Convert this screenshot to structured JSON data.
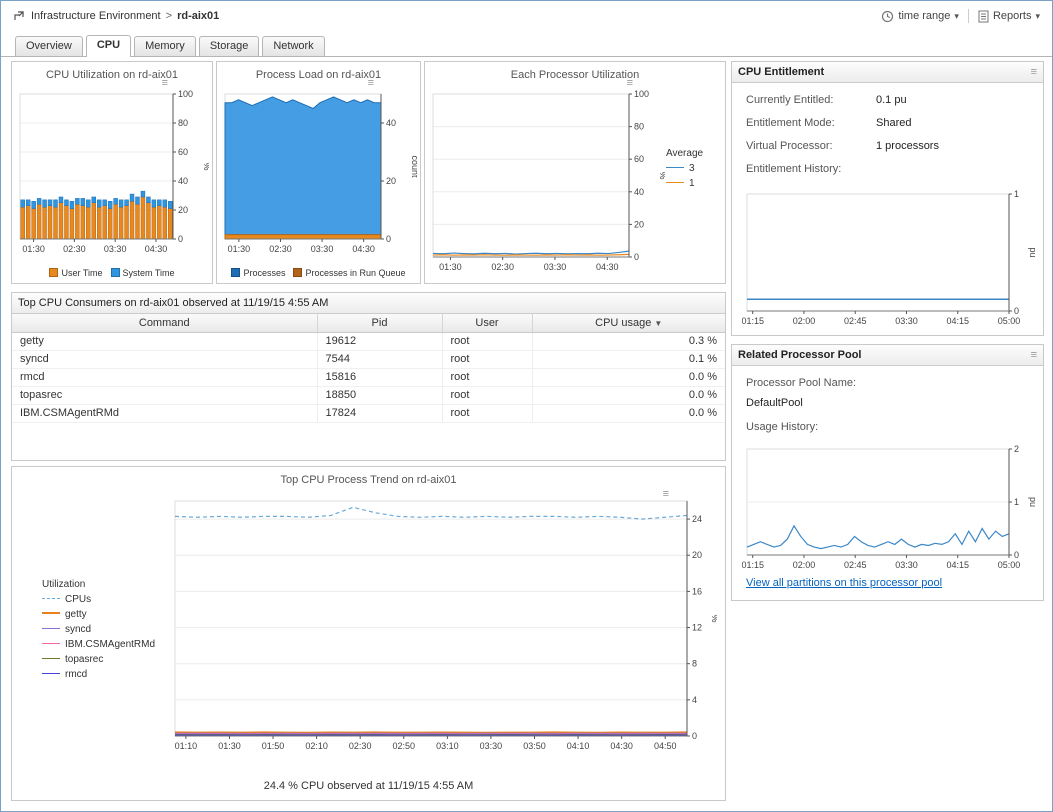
{
  "icons": {
    "menu": "≡",
    "caret": "▾",
    "sort_desc": "▼"
  },
  "breadcrumb": {
    "root": "Infrastructure Environment",
    "separator": ">",
    "current": "rd-aix01"
  },
  "topbar": {
    "time_range_label": "time range",
    "reports_label": "Reports"
  },
  "tabs": {
    "items": [
      {
        "label": "Overview",
        "active": false
      },
      {
        "label": "CPU",
        "active": true
      },
      {
        "label": "Memory",
        "active": false
      },
      {
        "label": "Storage",
        "active": false
      },
      {
        "label": "Network",
        "active": false
      }
    ]
  },
  "consumers": {
    "title": "Top CPU Consumers on rd-aix01 observed at 11/19/15 4:55 AM",
    "columns": [
      "Command",
      "Pid",
      "User",
      "CPU usage"
    ],
    "sort_column": "CPU usage",
    "rows": [
      {
        "command": "getty",
        "pid": "19612",
        "user": "root",
        "cpu": "0.3 %"
      },
      {
        "command": "syncd",
        "pid": "7544",
        "user": "root",
        "cpu": "0.1 %"
      },
      {
        "command": "rmcd",
        "pid": "15816",
        "user": "root",
        "cpu": "0.0 %"
      },
      {
        "command": "topasrec",
        "pid": "18850",
        "user": "root",
        "cpu": "0.0 %"
      },
      {
        "command": "IBM.CSMAgentRMd",
        "pid": "17824",
        "user": "root",
        "cpu": "0.0 %"
      }
    ]
  },
  "entitlement": {
    "title": "CPU Entitlement",
    "fields": [
      {
        "label": "Currently Entitled:",
        "value": "0.1 pu"
      },
      {
        "label": "Entitlement Mode:",
        "value": "Shared"
      },
      {
        "label": "Virtual Processor:",
        "value": "1 processors"
      }
    ],
    "history_label": "Entitlement History:"
  },
  "pool": {
    "title": "Related Processor Pool",
    "name_label": "Processor Pool Name:",
    "name_value": "DefaultPool",
    "usage_label": "Usage History:",
    "link": "View all partitions on this processor pool"
  },
  "trend": {
    "caption": "24.4 % CPU observed at 11/19/15 4:55 AM"
  },
  "chart_data": [
    {
      "type": "bar",
      "title": "CPU Utilization on rd-aix01",
      "ylabel": "%",
      "ylim": [
        0,
        100
      ],
      "yticks": [
        0,
        20,
        40,
        60,
        80,
        100
      ],
      "xrange": [
        "01:10",
        "04:55"
      ],
      "xticks": [
        "01:30",
        "02:30",
        "03:30",
        "04:30"
      ],
      "series": [
        {
          "name": "User Time",
          "color": "#e8891e",
          "stroke": "#b3641a",
          "values": [
            22,
            23,
            21,
            24,
            22,
            23,
            22,
            25,
            23,
            21,
            24,
            23,
            22,
            25,
            22,
            23,
            21,
            24,
            22,
            23,
            26,
            24,
            29,
            25,
            22,
            23,
            22,
            21
          ]
        },
        {
          "name": "System Time",
          "color": "#2e96e0",
          "stroke": "#1d6db3",
          "values": [
            5,
            4,
            5,
            4,
            5,
            4,
            5,
            4,
            4,
            5,
            4,
            5,
            5,
            4,
            5,
            4,
            5,
            4,
            5,
            4,
            5,
            5,
            4,
            4,
            5,
            4,
            5,
            5
          ]
        }
      ]
    },
    {
      "type": "area",
      "title": "Process Load on rd-aix01",
      "ylabel": "count",
      "ylim": [
        0,
        50
      ],
      "yticks": [
        0,
        20,
        40
      ],
      "xrange": [
        "01:10",
        "04:55"
      ],
      "xticks": [
        "01:30",
        "02:30",
        "03:30",
        "04:30"
      ],
      "series": [
        {
          "name": "Processes",
          "color": "#1d6db3",
          "fill": "#459ee4",
          "values": [
            47,
            47,
            48,
            47,
            46,
            47,
            48,
            49,
            48,
            47,
            48,
            47,
            46,
            45,
            47,
            48,
            49,
            48,
            47,
            48,
            47,
            48,
            47,
            47
          ]
        },
        {
          "name": "Processes in Run Queue",
          "color": "#b3641a",
          "fill": "#e8891e",
          "values": [
            1.5,
            1.5,
            1.5,
            1.5,
            1.5,
            1.5,
            1.5,
            1.5,
            1.5,
            1.5,
            1.5,
            1.5,
            1.5,
            1.5,
            1.5,
            1.5,
            1.5,
            1.5,
            1.5,
            1.5,
            1.5,
            1.5,
            1.5,
            1.5
          ]
        }
      ]
    },
    {
      "type": "line",
      "title": "Each Processor Utilization",
      "ylabel": "%",
      "ylim": [
        0,
        100
      ],
      "yticks": [
        0,
        20,
        40,
        60,
        80,
        100
      ],
      "xrange": [
        "01:10",
        "04:55"
      ],
      "xticks": [
        "01:30",
        "02:30",
        "03:30",
        "04:30"
      ],
      "legend_title": "Average",
      "swatch": "line",
      "series": [
        {
          "name": "3",
          "color": "#3b87c8",
          "width": 1.2,
          "values": [
            2.2,
            2.0,
            2.4,
            2.1,
            1.9,
            2.3,
            2.0,
            2.2,
            1.8,
            2.1,
            2.3,
            2.0,
            2.2,
            1.9,
            2.1,
            2.0,
            2.3,
            2.1,
            2.8,
            3.6
          ]
        },
        {
          "name": "1",
          "color": "#e8891e",
          "width": 1.2,
          "values": [
            1.2,
            1.4,
            1.1,
            1.3,
            1.2,
            1.4,
            1.2,
            1.1,
            1.3,
            1.2,
            1.1,
            1.3,
            1.2,
            1.4,
            1.2,
            1.3,
            1.1,
            1.2,
            1.4,
            1.6
          ]
        }
      ]
    },
    {
      "type": "line",
      "title": "",
      "ylabel": "pu",
      "ylim": [
        0,
        1
      ],
      "yticks": [
        0,
        1
      ],
      "xrange": [
        "01:10",
        "05:00"
      ],
      "xticks": [
        "01:15",
        "02:00",
        "02:45",
        "03:30",
        "04:15",
        "05:00"
      ],
      "series": [
        {
          "name": "Entitlement",
          "color": "#3b87c8",
          "width": 1.5,
          "values": [
            0.1,
            0.1,
            0.1,
            0.1,
            0.1,
            0.1,
            0.1,
            0.1,
            0.1,
            0.1,
            0.1,
            0.1,
            0.1,
            0.1,
            0.1,
            0.1,
            0.1,
            0.1,
            0.1,
            0.1,
            0.1,
            0.1,
            0.1,
            0.1
          ]
        }
      ]
    },
    {
      "type": "line",
      "title": "",
      "ylabel": "pu",
      "ylim": [
        0,
        2
      ],
      "yticks": [
        0,
        1,
        2
      ],
      "xrange": [
        "01:10",
        "05:00"
      ],
      "xticks": [
        "01:15",
        "02:00",
        "02:45",
        "03:30",
        "04:15",
        "05:00"
      ],
      "series": [
        {
          "name": "Pool Usage",
          "color": "#3b87c8",
          "width": 1.2,
          "values": [
            0.15,
            0.2,
            0.25,
            0.2,
            0.15,
            0.18,
            0.3,
            0.55,
            0.35,
            0.2,
            0.15,
            0.12,
            0.15,
            0.18,
            0.15,
            0.2,
            0.35,
            0.25,
            0.18,
            0.15,
            0.2,
            0.25,
            0.2,
            0.3,
            0.2,
            0.15,
            0.2,
            0.18,
            0.22,
            0.2,
            0.25,
            0.4,
            0.2,
            0.45,
            0.25,
            0.5,
            0.3,
            0.45,
            0.35,
            0.4
          ]
        }
      ]
    },
    {
      "type": "line",
      "title": "Top CPU Process Trend on rd-aix01",
      "ylabel": "%",
      "ylim": [
        0,
        26
      ],
      "yticks": [
        0,
        4,
        8,
        12,
        16,
        20,
        24
      ],
      "xrange": [
        "01:05",
        "05:00"
      ],
      "xticks": [
        "01:10",
        "01:30",
        "01:50",
        "02:10",
        "02:30",
        "02:50",
        "03:10",
        "03:30",
        "03:50",
        "04:10",
        "04:30",
        "04:50"
      ],
      "legend_title": "Utilization",
      "swatch": "line",
      "series": [
        {
          "name": "CPUs",
          "color": "#6aaad8",
          "width": 1.2,
          "dash": true,
          "values": [
            24.3,
            24.2,
            24.3,
            24.2,
            24.3,
            24.3,
            24.2,
            24.4,
            25.3,
            24.7,
            24.3,
            24.2,
            24.3,
            24.2,
            24.3,
            24.2,
            24.3,
            24.3,
            24.2,
            24.3,
            24.2,
            24.0,
            24.2,
            24.4
          ]
        },
        {
          "name": "getty",
          "color": "#e8821e",
          "width": 2,
          "values": [
            0.4,
            0.38,
            0.39,
            0.37,
            0.4,
            0.38,
            0.36,
            0.39,
            0.38,
            0.4,
            0.37,
            0.38,
            0.39,
            0.37,
            0.36,
            0.38,
            0.37,
            0.4,
            0.38,
            0.36,
            0.39,
            0.37,
            0.38,
            0.4
          ]
        },
        {
          "name": "syncd",
          "color": "#8a6fd6",
          "width": 1.2,
          "values": [
            0.3,
            0.29,
            0.3,
            0.28,
            0.29,
            0.3,
            0.28,
            0.29,
            0.3,
            0.29,
            0.28,
            0.3,
            0.29,
            0.28,
            0.29,
            0.3,
            0.29,
            0.28,
            0.3,
            0.29,
            0.28,
            0.29,
            0.3,
            0.29
          ]
        },
        {
          "name": "IBM.CSMAgentRMd",
          "color": "#f06ba8",
          "width": 1.2,
          "values": [
            0.22,
            0.21,
            0.22,
            0.2,
            0.22,
            0.21,
            0.2,
            0.22,
            0.21,
            0.22,
            0.2,
            0.21,
            0.22,
            0.2,
            0.21,
            0.22,
            0.21,
            0.2,
            0.22,
            0.21,
            0.2,
            0.21,
            0.22,
            0.21
          ]
        },
        {
          "name": "topasrec",
          "color": "#6b7a2f",
          "width": 1.2,
          "values": [
            0.15,
            0.14,
            0.15,
            0.13,
            0.15,
            0.14,
            0.13,
            0.15,
            0.14,
            0.15,
            0.13,
            0.14,
            0.15,
            0.13,
            0.14,
            0.15,
            0.14,
            0.13,
            0.15,
            0.14,
            0.13,
            0.14,
            0.15,
            0.14
          ]
        },
        {
          "name": "rmcd",
          "color": "#4444cc",
          "width": 1.2,
          "values": [
            0.1,
            0.09,
            0.1,
            0.08,
            0.1,
            0.09,
            0.08,
            0.1,
            0.09,
            0.1,
            0.08,
            0.09,
            0.1,
            0.08,
            0.09,
            0.1,
            0.09,
            0.08,
            0.1,
            0.09,
            0.08,
            0.09,
            0.1,
            0.09
          ]
        }
      ]
    }
  ]
}
